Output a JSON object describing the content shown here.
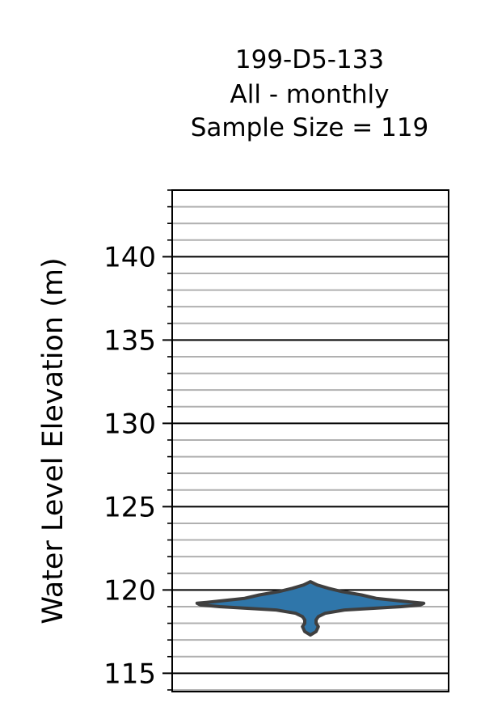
{
  "chart_data": {
    "type": "violin",
    "title_lines": [
      "199-D5-133",
      "All - monthly",
      "Sample Size = 119"
    ],
    "ylabel": "Water Level Elevation (m)",
    "xlabel": "",
    "ylim": [
      113.9,
      144.0
    ],
    "yticks_major": [
      115,
      120,
      125,
      130,
      135,
      140
    ],
    "ytick_labels": [
      "115",
      "120",
      "125",
      "130",
      "135",
      "140"
    ],
    "yticks_minor_step": 1,
    "grid": {
      "major": true,
      "minor": true,
      "major_color": "#000000",
      "minor_color": "#b0b0b0"
    },
    "series": [
      {
        "fill": "#2f76aa",
        "edge": "#3f3f3f",
        "min": 117.3,
        "max": 120.5,
        "density_profile": [
          [
            117.3,
            0.0
          ],
          [
            117.5,
            0.05
          ],
          [
            117.8,
            0.07
          ],
          [
            118.0,
            0.05
          ],
          [
            118.2,
            0.05
          ],
          [
            118.4,
            0.07
          ],
          [
            118.6,
            0.13
          ],
          [
            118.8,
            0.3
          ],
          [
            119.0,
            0.8
          ],
          [
            119.1,
            0.97
          ],
          [
            119.2,
            1.0
          ],
          [
            119.3,
            0.85
          ],
          [
            119.5,
            0.58
          ],
          [
            119.7,
            0.45
          ],
          [
            119.9,
            0.28
          ],
          [
            120.1,
            0.16
          ],
          [
            120.3,
            0.06
          ],
          [
            120.5,
            0.0
          ]
        ]
      }
    ]
  }
}
